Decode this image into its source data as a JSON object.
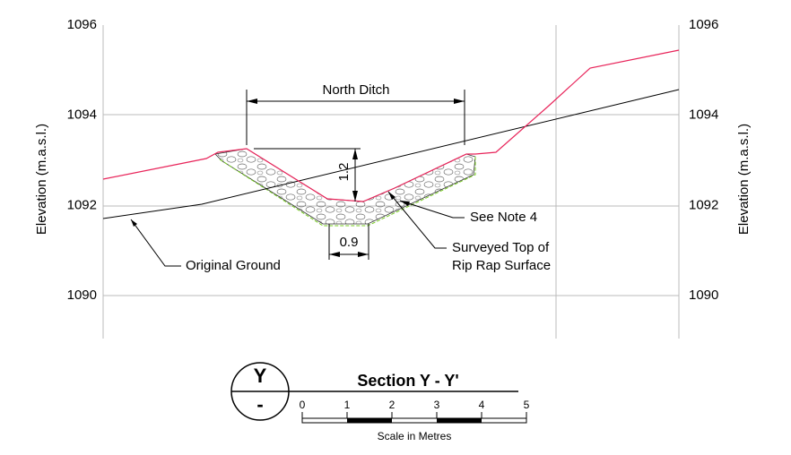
{
  "axes": {
    "title": "Elevation (m.a.s.l.)",
    "ticks": [
      "1096",
      "1094",
      "1092",
      "1090"
    ]
  },
  "dimensions": {
    "width_label": "North Ditch",
    "depth": "1.2",
    "base": "0.9"
  },
  "annotations": {
    "note": "See Note 4",
    "surveyed": [
      "Surveyed Top of",
      "Rip Rap Surface"
    ],
    "ground": "Original Ground"
  },
  "section": {
    "symbol": "Y",
    "sheet": "-",
    "title": "Section Y - Y'"
  },
  "scale_bar": {
    "ticks": [
      "0",
      "1",
      "2",
      "3",
      "4",
      "5"
    ],
    "caption": "Scale in Metres"
  }
}
